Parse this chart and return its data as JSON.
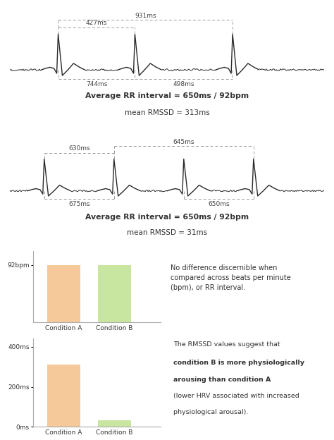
{
  "bg_color": "#ffffff",
  "panel1_bg": "#f8ddb8",
  "panel2_bg": "#deedc8",
  "panel1_title_bold": "Average RR interval = 650ms / 92bpm",
  "panel1_subtitle": "mean RMSSD = 313ms",
  "panel1_labels_top": [
    "427ms",
    "931ms"
  ],
  "panel1_labels_bottom": [
    "744ms",
    "498ms"
  ],
  "panel2_title_bold": "Average RR interval = 650ms / 92bpm",
  "panel2_subtitle": "mean RMSSD = 31ms",
  "panel2_labels_top": [
    "630ms",
    "645ms"
  ],
  "panel2_labels_bottom": [
    "675ms",
    "650ms"
  ],
  "bar1_categories": [
    "Condition A",
    "Condition B"
  ],
  "bar1_values": [
    92,
    92
  ],
  "bar1_colors": [
    "#f5c99a",
    "#c8e6a0"
  ],
  "bar1_ytick_labels": [
    "92bpm"
  ],
  "bar1_ytick_vals": [
    92
  ],
  "bar1_text_line1": "No difference discernible when",
  "bar1_text_line2": "compared across beats per minute",
  "bar1_text_line3": "(bpm), or RR interval.",
  "bar2_categories": [
    "Condition A",
    "Condition B"
  ],
  "bar2_values": [
    313,
    31
  ],
  "bar2_colors": [
    "#f5c99a",
    "#c8e6a0"
  ],
  "bar2_ytick_vals": [
    0,
    200,
    400
  ],
  "bar2_ytick_labels": [
    "0ms",
    "200ms",
    "400ms"
  ],
  "ecg_color": "#2a2a2a",
  "label_color": "#444444",
  "dashed_color": "#999999",
  "text_color": "#333333",
  "axis_color": "#aaaaaa"
}
